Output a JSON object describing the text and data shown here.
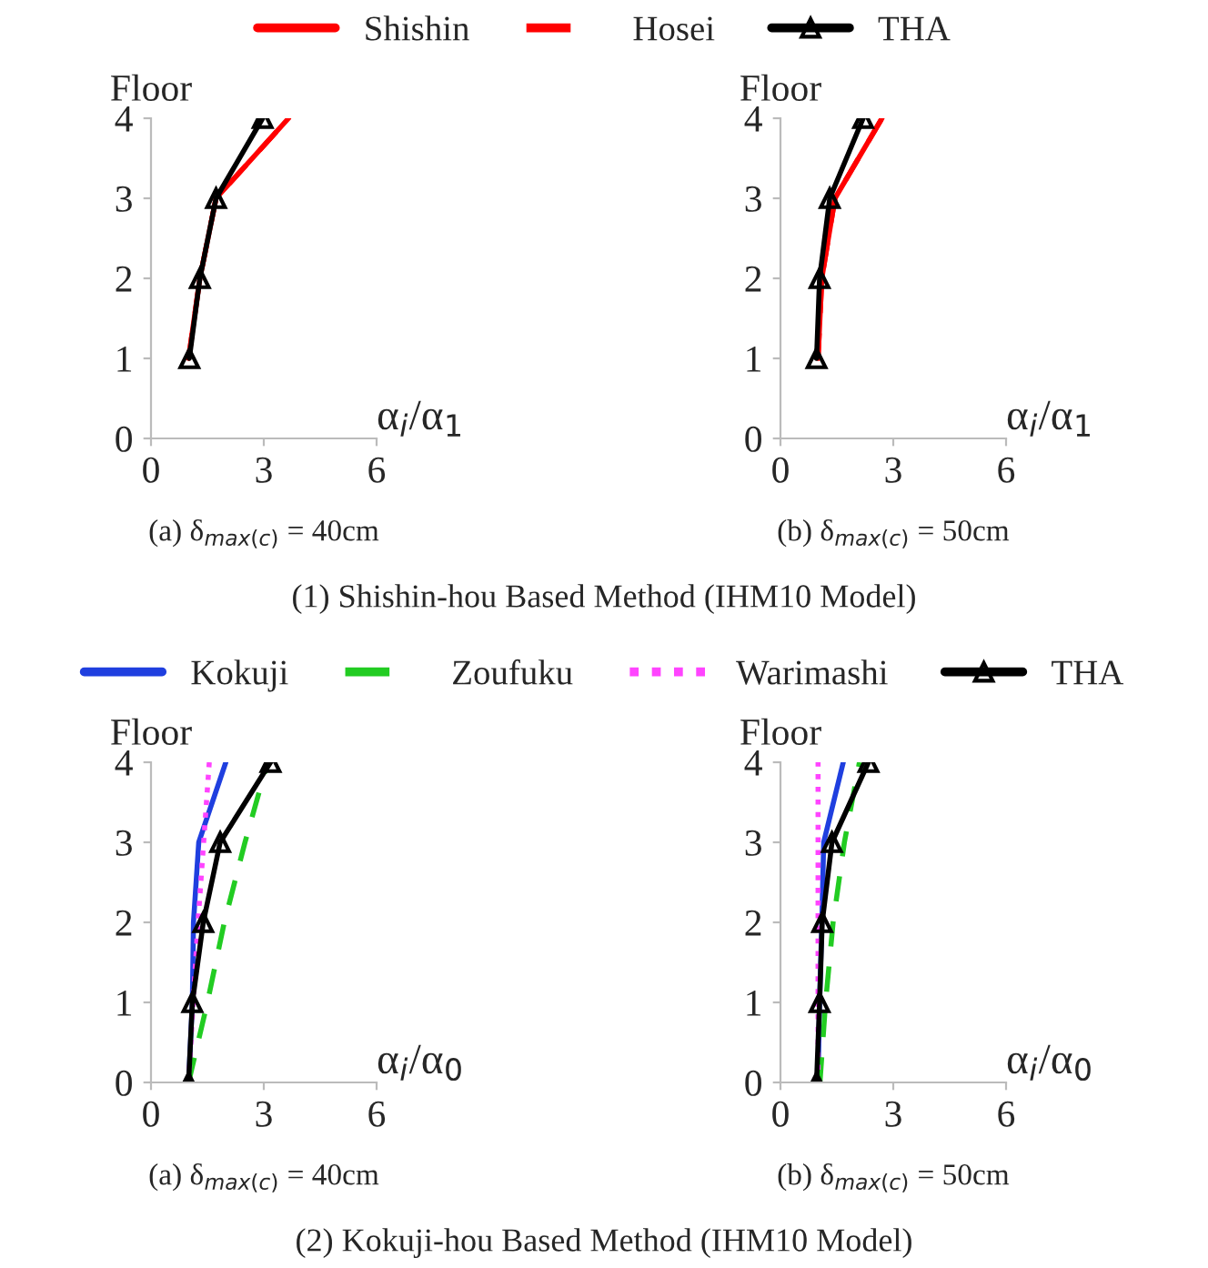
{
  "chart_data": [
    {
      "type": "line",
      "title": "(a) δ$_{max(c)}$ = 40cm",
      "xlabel": "α$_{i}$/α$_{1}$",
      "ylabel": "Floor",
      "xlim": [
        0,
        6
      ],
      "xticks": [
        0,
        3,
        6
      ],
      "ylim": [
        0,
        4
      ],
      "yticks": [
        0,
        1,
        2,
        3,
        4
      ],
      "grid": false,
      "legend": "top",
      "annotations": [
        "(1) Shishin-hou Based Method (IHM10 Model)"
      ],
      "series": [
        {
          "name": "Shishin",
          "color": "#ff0000",
          "line_style": "solid",
          "marker": "none",
          "x": [
            1.0,
            1.3,
            1.73,
            3.66
          ],
          "values": [
            1,
            2,
            3,
            4
          ]
        },
        {
          "name": "Hosei",
          "color": "#ff0000",
          "line_style": "dashed",
          "marker": "none",
          "x": [
            1.0,
            1.3,
            1.73,
            3.66
          ],
          "values": [
            1,
            2,
            3,
            4
          ]
        },
        {
          "name": "THA",
          "color": "#000000",
          "line_style": "solid",
          "marker": "triangle",
          "x": [
            1.02,
            1.3,
            1.73,
            2.97
          ],
          "values": [
            1,
            2,
            3,
            4
          ]
        }
      ]
    },
    {
      "type": "line",
      "title": "(b) δ$_{max(c)}$ = 50cm",
      "xlabel": "α$_{i}$/α$_{1}$",
      "ylabel": "Floor",
      "xlim": [
        0,
        6
      ],
      "xticks": [
        0,
        3,
        6
      ],
      "ylim": [
        0,
        4
      ],
      "yticks": [
        0,
        1,
        2,
        3,
        4
      ],
      "grid": false,
      "series": [
        {
          "color": "#ff0000",
          "line_style": "solid",
          "marker": "none",
          "x": [
            1.0,
            1.1,
            1.45,
            2.7
          ],
          "values": [
            1,
            2,
            3,
            4
          ]
        },
        {
          "color": "#ff0000",
          "line_style": "dashed",
          "marker": "none",
          "x": [
            1.0,
            1.1,
            1.45,
            2.7
          ],
          "values": [
            1,
            2,
            3,
            4
          ]
        },
        {
          "color": "#000000",
          "line_style": "solid",
          "marker": "triangle",
          "x": [
            0.96,
            1.04,
            1.31,
            2.2
          ],
          "values": [
            1,
            2,
            3,
            4
          ]
        }
      ]
    },
    {
      "type": "line",
      "title": "(a) δ$_{max(c)}$ = 40cm",
      "xlabel": "α$_{i}$/α$_{0}$",
      "ylabel": "Floor",
      "xlim": [
        0,
        6
      ],
      "xticks": [
        0,
        3,
        6
      ],
      "ylim": [
        0,
        4
      ],
      "yticks": [
        0,
        1,
        2,
        3,
        4
      ],
      "grid": false,
      "legend": "top",
      "annotations": [
        "(2) Kokuji-hou Based Method (IHM10 Model)"
      ],
      "series": [
        {
          "name": "Kokuji",
          "color": "#1f3fdf",
          "line_style": "solid",
          "marker": "none",
          "x": [
            1.0,
            1.1,
            1.13,
            1.27,
            1.99
          ],
          "values": [
            0,
            1,
            2,
            3,
            4
          ]
        },
        {
          "name": "Zoufuku",
          "color": "#22cc22",
          "line_style": "dashed",
          "marker": "none",
          "x": [
            1.0,
            1.5,
            1.95,
            2.5,
            3.1
          ],
          "values": [
            0,
            1,
            2,
            3,
            4
          ]
        },
        {
          "name": "Warimashi",
          "color": "#ff44ff",
          "line_style": "dotted",
          "marker": "none",
          "x": [
            1.0,
            1.12,
            1.25,
            1.4,
            1.55
          ],
          "values": [
            0,
            1,
            2,
            3,
            4
          ]
        },
        {
          "name": "THA",
          "color": "#000000",
          "line_style": "solid",
          "marker": "triangle",
          "x": [
            1.0,
            1.1,
            1.39,
            1.84,
            3.18
          ],
          "values": [
            0,
            1,
            2,
            3,
            4
          ]
        }
      ]
    },
    {
      "type": "line",
      "title": "(b) δ$_{max(c)}$ = 50cm",
      "xlabel": "α$_{i}$/α$_{0}$",
      "ylabel": "Floor",
      "xlim": [
        0,
        6
      ],
      "xticks": [
        0,
        3,
        6
      ],
      "ylim": [
        0,
        4
      ],
      "yticks": [
        0,
        1,
        2,
        3,
        4
      ],
      "grid": false,
      "series": [
        {
          "color": "#1f3fdf",
          "line_style": "solid",
          "marker": "none",
          "x": [
            1.0,
            1.04,
            1.1,
            1.15,
            1.67
          ],
          "values": [
            0,
            1,
            2,
            3,
            4
          ]
        },
        {
          "color": "#22cc22",
          "line_style": "dashed",
          "marker": "none",
          "x": [
            1.05,
            1.2,
            1.4,
            1.7,
            2.1
          ],
          "values": [
            0,
            1,
            2,
            3,
            4
          ]
        },
        {
          "color": "#ff44ff",
          "line_style": "dotted",
          "marker": "none",
          "x": [
            1.0,
            1.0,
            1.0,
            1.0,
            1.0
          ],
          "values": [
            0,
            1,
            2,
            3,
            4
          ]
        },
        {
          "color": "#000000",
          "line_style": "solid",
          "marker": "triangle",
          "x": [
            0.96,
            1.04,
            1.11,
            1.37,
            2.34
          ],
          "values": [
            0,
            1,
            2,
            3,
            4
          ]
        }
      ]
    }
  ]
}
